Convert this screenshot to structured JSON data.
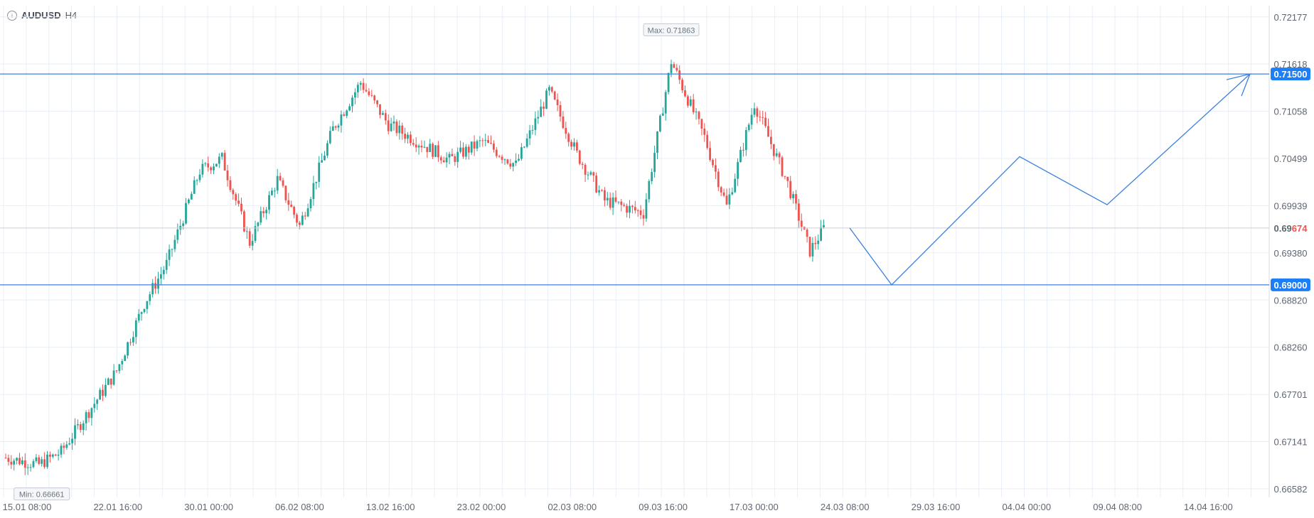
{
  "header": {
    "info_icon": "i",
    "symbol": "AUDUSD",
    "timeframe": "H4"
  },
  "colors": {
    "up": "#26a69a",
    "down": "#ef5350",
    "line": "#3d7fdf",
    "grid": "#e8eef7",
    "badge": "#1e7ef5"
  },
  "chart_data": {
    "type": "candlestick",
    "title": "",
    "xlabel": "",
    "ylabel": "",
    "ylim": [
      0.6648,
      0.7231
    ],
    "y_ticks": [
      "0.72177",
      "0.71618",
      "0.71058",
      "0.70499",
      "0.69939",
      "0.69380",
      "0.68820",
      "0.68260",
      "0.67701",
      "0.67141",
      "0.66582"
    ],
    "x_ticks": [
      "15.01 08:00",
      "22.01 16:00",
      "30.01 00:00",
      "06.02 08:00",
      "13.02 16:00",
      "23.02 00:00",
      "02.03 08:00",
      "09.03 16:00",
      "17.03 00:00",
      "24.03 08:00",
      "29.03 16:00",
      "04.04 00:00",
      "09.04 08:00",
      "14.04 16:00"
    ],
    "price_levels": [
      {
        "label": "0.71500",
        "value": 0.715
      },
      {
        "label": "0.69000",
        "value": 0.69
      }
    ],
    "current_price": {
      "prefix": "0.69",
      "suffix": "674",
      "value": 0.69674
    },
    "max_label": "Max: 0.71863",
    "min_label": "Min: 0.66661",
    "anchors": [
      {
        "i": 0,
        "v": 0.6695
      },
      {
        "i": 12,
        "v": 0.6687
      },
      {
        "i": 20,
        "v": 0.6702
      },
      {
        "i": 40,
        "v": 0.6798
      },
      {
        "i": 50,
        "v": 0.6878
      },
      {
        "i": 58,
        "v": 0.6925
      },
      {
        "i": 70,
        "v": 0.7035
      },
      {
        "i": 78,
        "v": 0.705
      },
      {
        "i": 88,
        "v": 0.695
      },
      {
        "i": 98,
        "v": 0.7025
      },
      {
        "i": 106,
        "v": 0.697
      },
      {
        "i": 118,
        "v": 0.7085
      },
      {
        "i": 128,
        "v": 0.714
      },
      {
        "i": 138,
        "v": 0.709
      },
      {
        "i": 160,
        "v": 0.7048
      },
      {
        "i": 172,
        "v": 0.707
      },
      {
        "i": 184,
        "v": 0.7042
      },
      {
        "i": 196,
        "v": 0.713
      },
      {
        "i": 206,
        "v": 0.7055
      },
      {
        "i": 216,
        "v": 0.7
      },
      {
        "i": 230,
        "v": 0.6985
      },
      {
        "i": 240,
        "v": 0.7165
      },
      {
        "i": 252,
        "v": 0.7075
      },
      {
        "i": 260,
        "v": 0.6993
      },
      {
        "i": 270,
        "v": 0.7115
      },
      {
        "i": 282,
        "v": 0.702
      },
      {
        "i": 290,
        "v": 0.694
      },
      {
        "i": 295,
        "v": 0.6967
      }
    ],
    "projection": [
      {
        "x": "24.03 08:00+",
        "v": 0.69674
      },
      {
        "x": "27.03",
        "v": 0.69
      },
      {
        "x": "03.04",
        "v": 0.7052
      },
      {
        "x": "08.04",
        "v": 0.6995
      },
      {
        "x": "17.04",
        "v": 0.715
      }
    ]
  }
}
